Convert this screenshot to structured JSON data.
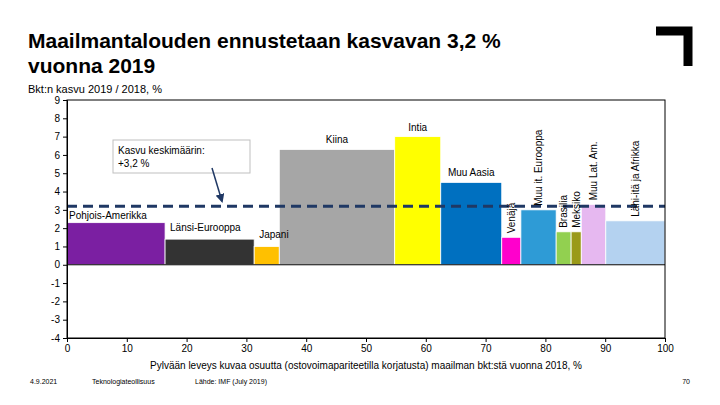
{
  "chart_data": {
    "type": "marimekko",
    "title": [
      "Maailmantalouden ennustetaan kasvavan 3,2 %",
      "vuonna 2019"
    ],
    "subtitle": "Bkt:n kasvu 2019 / 2018, %",
    "x_label": "Pylvään leveys kuvaa osuutta (ostovoimapariteetilla korjatusta) maailman bkt:stä vuonna 2018, %",
    "categories": [
      "Pohjois-Amerikka",
      "Länsi-Eurooppa",
      "Japani",
      "Kiina",
      "Intia",
      "Muu Aasia",
      "Venäjä",
      "Muu it. Eurooppa",
      "Brasilia",
      "Meksiko",
      "Muu Lat. Am.",
      "Lähi-itä ja Afrikka"
    ],
    "values": [
      2.3,
      1.4,
      1.0,
      6.3,
      7.0,
      4.5,
      1.5,
      3.0,
      1.8,
      1.8,
      3.3,
      2.4
    ],
    "bins": [
      0,
      16.4,
      31.3,
      35.5,
      54.8,
      62.5,
      72.7,
      75.9,
      81.8,
      84.3,
      86.0,
      90.1,
      100
    ],
    "colors": [
      "#7b1fa2",
      "#333333",
      "#ffc000",
      "#a6a6a6",
      "#ffff00",
      "#0070c0",
      "#ff00cc",
      "#2e9bd6",
      "#92d050",
      "#9a9a18",
      "#e6b8f0",
      "#b4d2f0"
    ],
    "average": 3.2,
    "annotation": [
      "Kasvu keskimäärin:",
      "+3,2 %"
    ],
    "xlim": [
      0,
      100
    ],
    "xticks": [
      0,
      10,
      20,
      30,
      40,
      50,
      60,
      70,
      80,
      90,
      100
    ],
    "ylim": [
      -4,
      9
    ],
    "yticks": [
      -4,
      -3,
      -2,
      -1,
      0,
      1,
      2,
      3,
      4,
      5,
      6,
      7,
      8,
      9
    ],
    "grid": false,
    "footer": [
      "4.9.2021",
      "Teknologiateollisuus",
      "Lähde: IMF (July 2019)",
      "70"
    ]
  }
}
